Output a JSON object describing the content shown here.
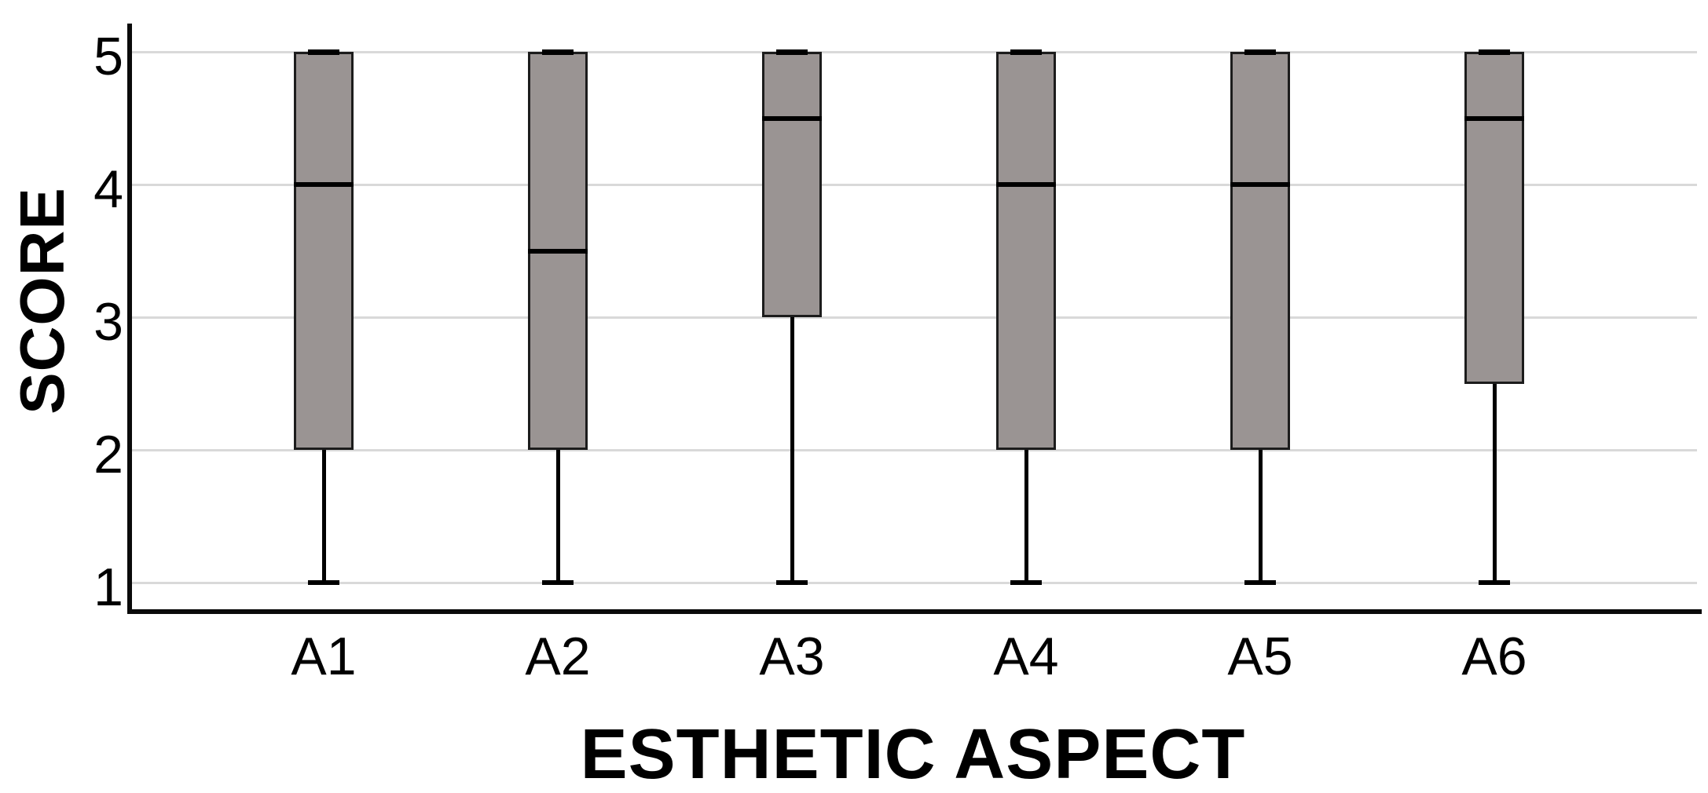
{
  "chart_data": {
    "type": "boxplot",
    "title": "",
    "xlabel": "ESTHETIC ASPECT",
    "ylabel": "SCORE",
    "categories": [
      "A1",
      "A2",
      "A3",
      "A4",
      "A5",
      "A6"
    ],
    "yticks": [
      1,
      2,
      3,
      4,
      5
    ],
    "ylim": [
      0.78,
      5.2
    ],
    "grid": "horizontal",
    "legend": "none",
    "boxes": [
      {
        "category": "A1",
        "whisker_low": 1,
        "q1": 2,
        "median": 4,
        "q3": 5,
        "whisker_high": 5
      },
      {
        "category": "A2",
        "whisker_low": 1,
        "q1": 2,
        "median": 3.5,
        "q3": 5,
        "whisker_high": 5
      },
      {
        "category": "A3",
        "whisker_low": 1,
        "q1": 3,
        "median": 4.5,
        "q3": 5,
        "whisker_high": 5
      },
      {
        "category": "A4",
        "whisker_low": 1,
        "q1": 2,
        "median": 4,
        "q3": 5,
        "whisker_high": 5
      },
      {
        "category": "A5",
        "whisker_low": 1,
        "q1": 2,
        "median": 4,
        "q3": 5,
        "whisker_high": 5
      },
      {
        "category": "A6",
        "whisker_low": 1,
        "q1": 2.5,
        "median": 4.5,
        "q3": 5,
        "whisker_high": 5
      }
    ],
    "colors": {
      "box_fill": "#9a9493",
      "box_border": "#1c1c1c",
      "median": "#000000",
      "whisker": "#000000",
      "gridline": "#d9d9d9",
      "axis": "#0a0a0a",
      "background": "#ffffff",
      "text": "#000000"
    }
  }
}
